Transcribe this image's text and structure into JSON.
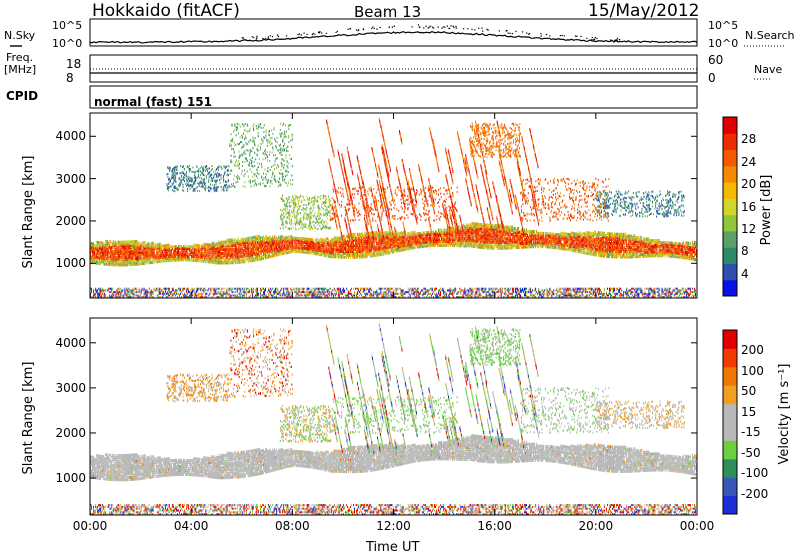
{
  "header": {
    "station": "Hokkaido (fitACF)",
    "beam": "Beam 13",
    "date": "15/May/2012"
  },
  "top_panels": {
    "nsky_label": "N.Sky",
    "nsearch_label": "N.Search",
    "nsky_ticks": [
      "10^5",
      "10^0"
    ],
    "freq_label_line1": "Freq.",
    "freq_label_line2": "[MHz]",
    "freq_ticks": [
      "18",
      "8"
    ],
    "nave_label": "Nave",
    "nave_ticks": [
      "60",
      "0"
    ],
    "cpid_label": "CPID",
    "cpid_value": "normal (fast) 151"
  },
  "chart_data": [
    {
      "type": "heatmap",
      "title": "",
      "xlabel": "Time UT",
      "ylabel": "Slant Range [km]",
      "x_ticks": [
        "00:00",
        "04:00",
        "08:00",
        "12:00",
        "16:00",
        "20:00",
        "00:00"
      ],
      "xlim": [
        0,
        24
      ],
      "y_ticks": [
        1000,
        2000,
        3000,
        4000
      ],
      "ylim": [
        180,
        4550
      ],
      "colorbar": {
        "label": "Power [dB]",
        "ticks": [
          "4",
          "8",
          "12",
          "16",
          "20",
          "24",
          "28"
        ],
        "colors": [
          "#0a10e8",
          "#3050b0",
          "#2e8a6a",
          "#5aa068",
          "#8ec83a",
          "#cfd82a",
          "#f6b800",
          "#f58a00",
          "#f55a00",
          "#ee2c00",
          "#e00000"
        ]
      }
    },
    {
      "type": "heatmap",
      "title": "",
      "xlabel": "Time UT",
      "ylabel": "Slant Range [km]",
      "x_ticks": [
        "00:00",
        "04:00",
        "08:00",
        "12:00",
        "16:00",
        "20:00",
        "00:00"
      ],
      "xlim": [
        0,
        24
      ],
      "y_ticks": [
        1000,
        2000,
        3000,
        4000
      ],
      "ylim": [
        180,
        4550
      ],
      "colorbar": {
        "label": "Velocity [m s⁻¹]",
        "ticks": [
          "200",
          "100",
          "50",
          "15",
          "-15",
          "-50",
          "-100",
          "-200"
        ],
        "colors": [
          "#1a2fd8",
          "#3858b8",
          "#2f8f5a",
          "#6ad040",
          "#b8b8b8",
          "#b8b8b8",
          "#f0a020",
          "#f07800",
          "#f03a00",
          "#e00000"
        ]
      }
    }
  ],
  "colors": {
    "ground_scatter": "#b8b8b8",
    "frame": "#000000"
  }
}
